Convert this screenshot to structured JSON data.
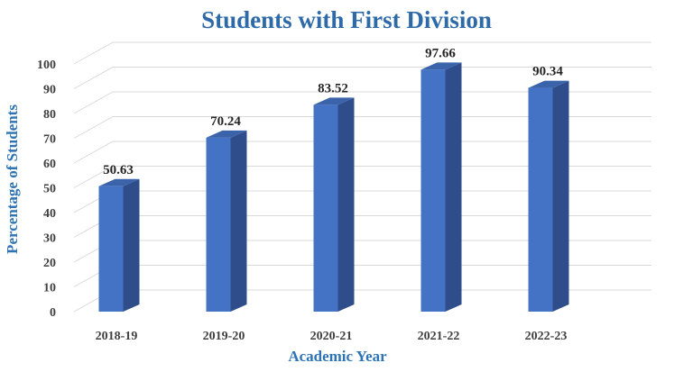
{
  "chart_data": {
    "type": "bar",
    "title": "Students with First Division",
    "xlabel": "Academic Year",
    "ylabel": "Percentage of Students",
    "categories": [
      "2018-19",
      "2019-20",
      "2020-21",
      "2021-22",
      "2022-23"
    ],
    "values": [
      50.63,
      70.24,
      83.52,
      97.66,
      90.34
    ],
    "value_labels": [
      "50.63",
      "70.24",
      "83.52",
      "97.66",
      "90.34"
    ],
    "ylim": [
      0,
      100
    ],
    "yticks": [
      "0",
      "10",
      "20",
      "30",
      "40",
      "50",
      "60",
      "70",
      "80",
      "90",
      "100"
    ],
    "grid": true,
    "style": "3d-column",
    "colors": {
      "bar_front": "#4472c4",
      "bar_side": "#2f4d8a",
      "bar_top": "#3a63aa",
      "title": "#2e6aa8",
      "axis_title": "#2e74b5"
    }
  }
}
